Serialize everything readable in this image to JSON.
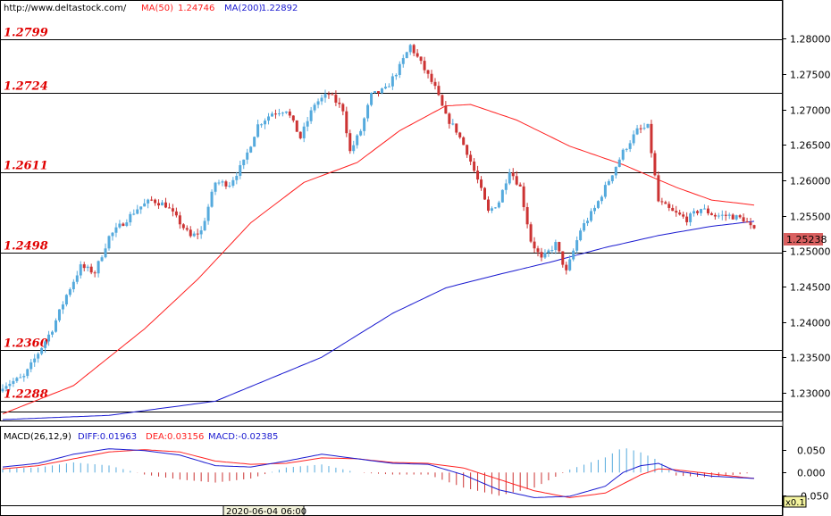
{
  "header": {
    "url": "http://www.deltastock.com/",
    "ma50_label": "MA(50)",
    "ma50_value": "1.24746",
    "ma200_label": "MA(200)",
    "ma200_value": "1.22892"
  },
  "macd_header": {
    "name": "MACD(26,12,9)",
    "diff": "DIFF:0.01963",
    "dea": "DEA:0.03156",
    "macd": "MACD:-0.02385"
  },
  "time_label": "2020-06-04 06:00",
  "zoom_label": "x0.1",
  "current_price_label": "1.25238",
  "colors": {
    "bull": "#55aadd",
    "bear": "#cc3333",
    "ma50": "#ff2222",
    "ma200": "#1a1ad0",
    "level": "#e00000"
  },
  "chart_data": {
    "type": "candlestick",
    "price_axis": {
      "ylim": [
        1.2262,
        1.2852
      ],
      "ticks": [
        "1.28000",
        "1.27500",
        "1.27000",
        "1.26500",
        "1.26000",
        "1.25500",
        "1.25000",
        "1.24500",
        "1.24000",
        "1.23500",
        "1.23000"
      ],
      "tick_values": [
        1.28,
        1.275,
        1.27,
        1.265,
        1.26,
        1.255,
        1.25,
        1.245,
        1.24,
        1.235,
        1.23
      ]
    },
    "levels": [
      {
        "label": "1.2799",
        "value": 1.2799
      },
      {
        "label": "1.2724",
        "value": 1.2724
      },
      {
        "label": "1.2611",
        "value": 1.2611
      },
      {
        "label": "1.2498",
        "value": 1.2498
      },
      {
        "label": "1.2360",
        "value": 1.236
      },
      {
        "label": "1.2288",
        "value": 1.2288
      },
      {
        "label": "",
        "value": 1.2273
      }
    ],
    "current_price": 1.25238,
    "close_anchors": [
      [
        0,
        1.231
      ],
      [
        6,
        1.2322
      ],
      [
        10,
        1.2356
      ],
      [
        14,
        1.239
      ],
      [
        18,
        1.2438
      ],
      [
        22,
        1.2478
      ],
      [
        26,
        1.247
      ],
      [
        30,
        1.252
      ],
      [
        34,
        1.254
      ],
      [
        38,
        1.256
      ],
      [
        42,
        1.2572
      ],
      [
        46,
        1.2565
      ],
      [
        50,
        1.254
      ],
      [
        53,
        1.252
      ],
      [
        56,
        1.2528
      ],
      [
        60,
        1.2597
      ],
      [
        64,
        1.2595
      ],
      [
        68,
        1.2625
      ],
      [
        72,
        1.2678
      ],
      [
        76,
        1.2695
      ],
      [
        80,
        1.27
      ],
      [
        84,
        1.266
      ],
      [
        88,
        1.2708
      ],
      [
        92,
        1.2722
      ],
      [
        96,
        1.27
      ],
      [
        98,
        1.264
      ],
      [
        101,
        1.267
      ],
      [
        104,
        1.272
      ],
      [
        108,
        1.2728
      ],
      [
        112,
        1.276
      ],
      [
        115,
        1.279
      ],
      [
        118,
        1.2765
      ],
      [
        122,
        1.273
      ],
      [
        125,
        1.269
      ],
      [
        128,
        1.267
      ],
      [
        131,
        1.264
      ],
      [
        134,
        1.26
      ],
      [
        137,
        1.2555
      ],
      [
        140,
        1.257
      ],
      [
        143,
        1.2615
      ],
      [
        146,
        1.259
      ],
      [
        149,
        1.2515
      ],
      [
        152,
        1.2488
      ],
      [
        156,
        1.251
      ],
      [
        159,
        1.247
      ],
      [
        163,
        1.253
      ],
      [
        167,
        1.256
      ],
      [
        171,
        1.26
      ],
      [
        175,
        1.264
      ],
      [
        179,
        1.267
      ],
      [
        182,
        1.2675
      ],
      [
        185,
        1.257
      ],
      [
        189,
        1.2555
      ],
      [
        193,
        1.2545
      ],
      [
        197,
        1.256
      ],
      [
        201,
        1.255
      ],
      [
        205,
        1.255
      ],
      [
        209,
        1.2545
      ],
      [
        212,
        1.2528
      ]
    ],
    "ma50": [
      [
        0,
        1.227
      ],
      [
        20,
        1.231
      ],
      [
        40,
        1.239
      ],
      [
        55,
        1.246
      ],
      [
        70,
        1.254
      ],
      [
        85,
        1.2597
      ],
      [
        100,
        1.2625
      ],
      [
        112,
        1.267
      ],
      [
        125,
        1.2705
      ],
      [
        132,
        1.2707
      ],
      [
        145,
        1.2685
      ],
      [
        160,
        1.2648
      ],
      [
        175,
        1.2622
      ],
      [
        190,
        1.259
      ],
      [
        200,
        1.2572
      ],
      [
        212,
        1.2565
      ]
    ],
    "ma200": [
      [
        0,
        1.2262
      ],
      [
        30,
        1.2268
      ],
      [
        60,
        1.2288
      ],
      [
        90,
        1.235
      ],
      [
        110,
        1.2412
      ],
      [
        125,
        1.2448
      ],
      [
        140,
        1.2467
      ],
      [
        155,
        1.2485
      ],
      [
        170,
        1.2505
      ],
      [
        185,
        1.2522
      ],
      [
        200,
        1.2535
      ],
      [
        212,
        1.2542
      ]
    ],
    "macd": {
      "ylim": [
        -0.06,
        0.065
      ],
      "ticks": [
        "0.050",
        "0.000",
        "-0.050"
      ],
      "tick_values": [
        0.05,
        0.0,
        -0.05
      ],
      "diff": [
        [
          0,
          0.012
        ],
        [
          10,
          0.02
        ],
        [
          20,
          0.04
        ],
        [
          30,
          0.052
        ],
        [
          40,
          0.048
        ],
        [
          50,
          0.038
        ],
        [
          60,
          0.015
        ],
        [
          70,
          0.012
        ],
        [
          80,
          0.025
        ],
        [
          90,
          0.04
        ],
        [
          100,
          0.03
        ],
        [
          110,
          0.02
        ],
        [
          120,
          0.018
        ],
        [
          130,
          -0.005
        ],
        [
          140,
          -0.038
        ],
        [
          150,
          -0.055
        ],
        [
          160,
          -0.052
        ],
        [
          170,
          -0.03
        ],
        [
          175,
          0.0
        ],
        [
          180,
          0.015
        ],
        [
          185,
          0.02
        ],
        [
          190,
          0.003
        ],
        [
          200,
          -0.008
        ],
        [
          212,
          -0.013
        ]
      ],
      "dea": [
        [
          0,
          0.008
        ],
        [
          10,
          0.015
        ],
        [
          20,
          0.03
        ],
        [
          30,
          0.045
        ],
        [
          40,
          0.05
        ],
        [
          50,
          0.045
        ],
        [
          60,
          0.025
        ],
        [
          70,
          0.018
        ],
        [
          80,
          0.02
        ],
        [
          90,
          0.032
        ],
        [
          100,
          0.03
        ],
        [
          110,
          0.022
        ],
        [
          120,
          0.02
        ],
        [
          130,
          0.01
        ],
        [
          140,
          -0.015
        ],
        [
          150,
          -0.04
        ],
        [
          160,
          -0.055
        ],
        [
          170,
          -0.045
        ],
        [
          175,
          -0.025
        ],
        [
          180,
          -0.005
        ],
        [
          185,
          0.008
        ],
        [
          190,
          0.006
        ],
        [
          200,
          -0.003
        ],
        [
          212,
          -0.013
        ]
      ]
    }
  }
}
